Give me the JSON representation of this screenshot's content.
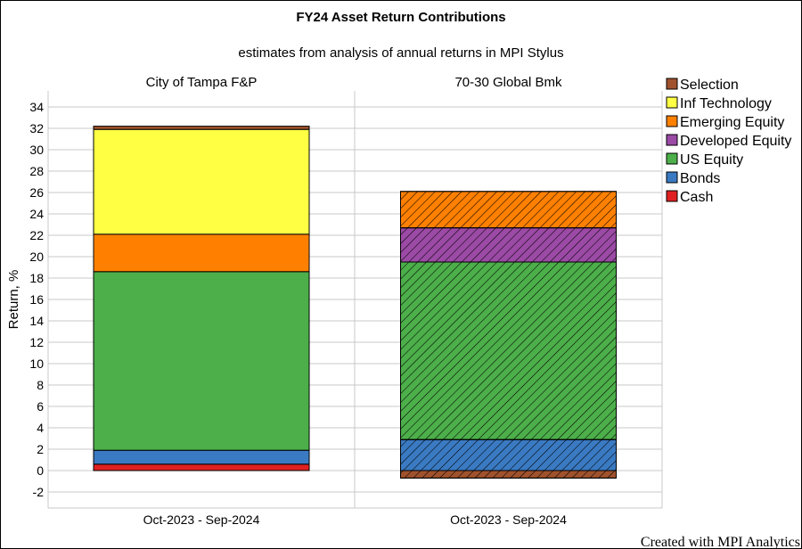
{
  "chart_data": {
    "type": "bar",
    "stacked": true,
    "title": "FY24 Asset Return Contributions",
    "subtitle": "estimates from analysis of annual returns in MPI Stylus",
    "ylabel": "Return, %",
    "ylim": [
      -3.5,
      35.5
    ],
    "yticks": [
      -2,
      0,
      2,
      4,
      6,
      8,
      10,
      12,
      14,
      16,
      18,
      20,
      22,
      24,
      26,
      28,
      30,
      32,
      34
    ],
    "grid": true,
    "legend_position": "top-right",
    "panels": [
      {
        "name": "City of Tampa F&P",
        "category": "Oct-2023 - Sep-2024",
        "hatched": false,
        "segments": [
          {
            "series": "Cash",
            "value": 0.6
          },
          {
            "series": "Bonds",
            "value": 1.3
          },
          {
            "series": "US Equity",
            "value": 16.7
          },
          {
            "series": "Emerging Equity",
            "value": 3.5
          },
          {
            "series": "Inf Technology",
            "value": 9.8
          },
          {
            "series": "Selection",
            "value": 0.3
          }
        ]
      },
      {
        "name": "70-30 Global Bmk",
        "category": "Oct-2023 - Sep-2024",
        "hatched": true,
        "segments": [
          {
            "series": "Selection",
            "value": -0.7
          },
          {
            "series": "Bonds",
            "value": 2.9
          },
          {
            "series": "US Equity",
            "value": 16.6
          },
          {
            "series": "Developed Equity",
            "value": 3.2
          },
          {
            "series": "Emerging Equity",
            "value": 3.4
          }
        ]
      }
    ],
    "legend": [
      {
        "name": "Selection",
        "color": "#a0522d"
      },
      {
        "name": "Inf Technology",
        "color": "#ffff44"
      },
      {
        "name": "Emerging Equity",
        "color": "#ff8000"
      },
      {
        "name": "Developed Equity",
        "color": "#9b4aa5"
      },
      {
        "name": "US Equity",
        "color": "#4caf4a"
      },
      {
        "name": "Bonds",
        "color": "#3a7ac2"
      },
      {
        "name": "Cash",
        "color": "#e02020"
      }
    ]
  },
  "footer": {
    "credit": "Created with MPI Analytics"
  }
}
